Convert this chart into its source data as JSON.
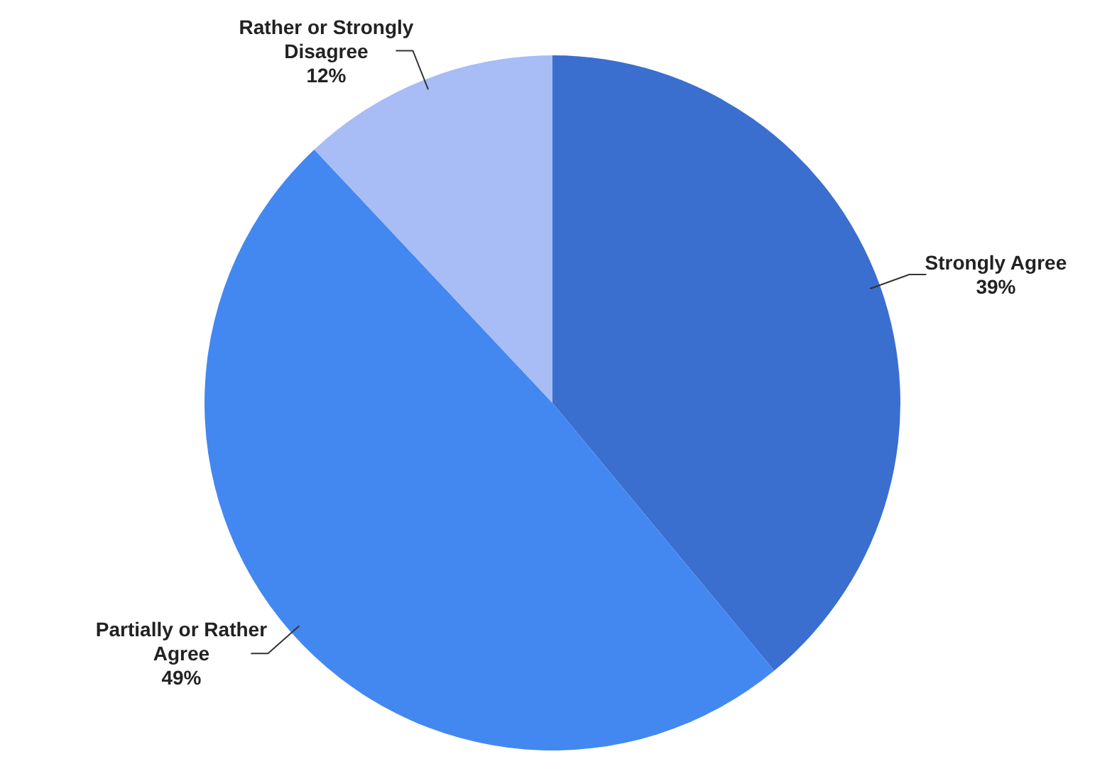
{
  "chart_data": {
    "type": "pie",
    "categories": [
      "Strongly Agree",
      "Partially or Rather Agree",
      "Rather or Strongly Disagree"
    ],
    "values": [
      39,
      49,
      12
    ],
    "colors": [
      "#3a6fcf",
      "#4388f1",
      "#a8bdf6"
    ],
    "value_labels": [
      "39%",
      "49%",
      "12%"
    ]
  }
}
